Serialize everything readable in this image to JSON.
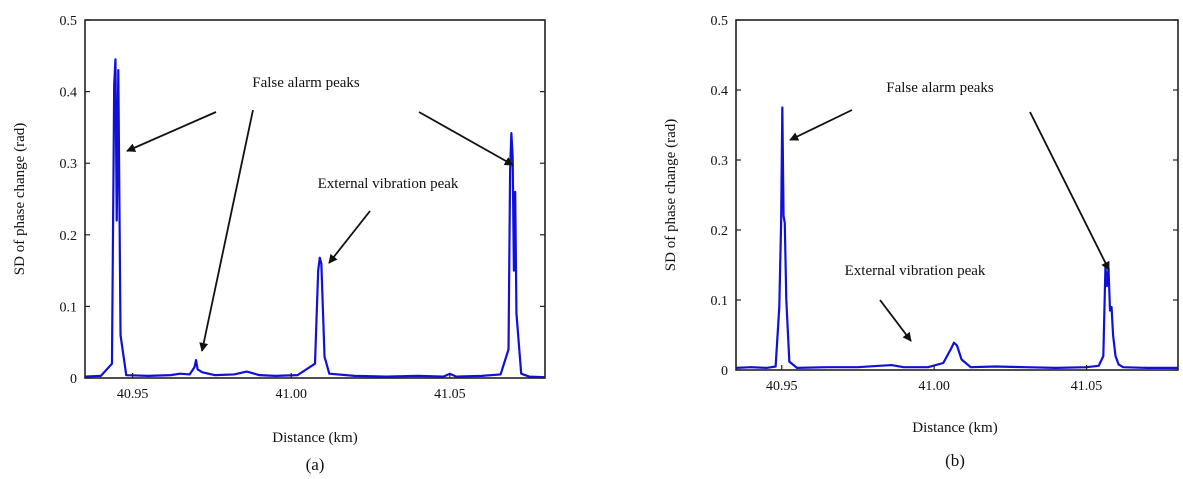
{
  "chart_data": [
    {
      "type": "line",
      "caption": "(a)",
      "xlabel": "Distance (km)",
      "ylabel": "SD of phase change (rad)",
      "xlim": [
        40.935,
        41.08
      ],
      "ylim": [
        0,
        0.5
      ],
      "xticks": [
        "40.95",
        "41.00",
        "41.05"
      ],
      "yticks": [
        "0",
        "0.1",
        "0.2",
        "0.3",
        "0.4",
        "0.5"
      ],
      "grid": false,
      "series": [
        {
          "color": "#1010d8",
          "x": [
            40.935,
            40.94,
            40.9435,
            40.9442,
            40.9446,
            40.945,
            40.9455,
            40.9462,
            40.948,
            40.955,
            40.962,
            40.965,
            40.968,
            40.9695,
            40.97,
            40.9705,
            40.972,
            40.976,
            40.982,
            40.986,
            40.99,
            40.995,
            41.002,
            41.0075,
            41.0085,
            41.009,
            41.0095,
            41.0105,
            41.012,
            41.02,
            41.03,
            41.04,
            41.048,
            41.05,
            41.052,
            41.06,
            41.066,
            41.0685,
            41.069,
            41.0694,
            41.0698,
            41.0702,
            41.0706,
            41.071,
            41.0725,
            41.075,
            41.08
          ],
          "y": [
            0.002,
            0.003,
            0.02,
            0.41,
            0.445,
            0.22,
            0.43,
            0.06,
            0.004,
            0.003,
            0.004,
            0.006,
            0.005,
            0.015,
            0.025,
            0.012,
            0.008,
            0.004,
            0.005,
            0.009,
            0.004,
            0.003,
            0.004,
            0.02,
            0.15,
            0.168,
            0.16,
            0.03,
            0.006,
            0.003,
            0.002,
            0.003,
            0.002,
            0.006,
            0.002,
            0.003,
            0.005,
            0.04,
            0.29,
            0.342,
            0.31,
            0.15,
            0.26,
            0.09,
            0.006,
            0.002,
            0.001
          ]
        }
      ],
      "annotations": [
        {
          "text": "False alarm peaks",
          "points_to": [
            [
              40.945,
              0.32
            ],
            [
              40.9705,
              0.025
            ],
            [
              41.0695,
              0.295
            ]
          ]
        },
        {
          "text": "External vibration peak",
          "points_to": [
            [
              41.0095,
              0.165
            ]
          ]
        }
      ]
    },
    {
      "type": "line",
      "caption": "(b)",
      "xlabel": "Distance (km)",
      "ylabel": "SD of phase change (rad)",
      "xlim": [
        40.935,
        41.08
      ],
      "ylim": [
        0,
        0.5
      ],
      "xticks": [
        "40.95",
        "41.00",
        "41.05"
      ],
      "yticks": [
        "0",
        "0.1",
        "0.2",
        "0.3",
        "0.4",
        "0.5"
      ],
      "grid": false,
      "series": [
        {
          "color": "#1010d8",
          "x": [
            40.935,
            40.94,
            40.945,
            40.948,
            40.9492,
            40.9498,
            40.9502,
            40.9506,
            40.951,
            40.9515,
            40.9525,
            40.955,
            40.965,
            40.975,
            40.982,
            40.986,
            40.99,
            40.998,
            41.003,
            41.0055,
            41.0065,
            41.0075,
            41.009,
            41.012,
            41.02,
            41.03,
            41.04,
            41.05,
            41.054,
            41.0555,
            41.0562,
            41.0567,
            41.0572,
            41.0577,
            41.0582,
            41.0587,
            41.0595,
            41.0605,
            41.062,
            41.07,
            41.08
          ],
          "y": [
            0.003,
            0.004,
            0.003,
            0.005,
            0.09,
            0.21,
            0.375,
            0.22,
            0.21,
            0.1,
            0.012,
            0.003,
            0.004,
            0.004,
            0.006,
            0.007,
            0.004,
            0.004,
            0.01,
            0.03,
            0.039,
            0.035,
            0.015,
            0.004,
            0.005,
            0.004,
            0.003,
            0.004,
            0.006,
            0.02,
            0.148,
            0.12,
            0.145,
            0.085,
            0.09,
            0.05,
            0.02,
            0.008,
            0.004,
            0.003,
            0.003
          ]
        }
      ],
      "annotations": [
        {
          "text": "False alarm peaks",
          "points_to": [
            [
              40.951,
              0.335
            ],
            [
              41.0563,
              0.14
            ]
          ]
        },
        {
          "text": "External vibration peak",
          "points_to": [
            [
              41.006,
              0.04
            ]
          ]
        }
      ]
    }
  ]
}
